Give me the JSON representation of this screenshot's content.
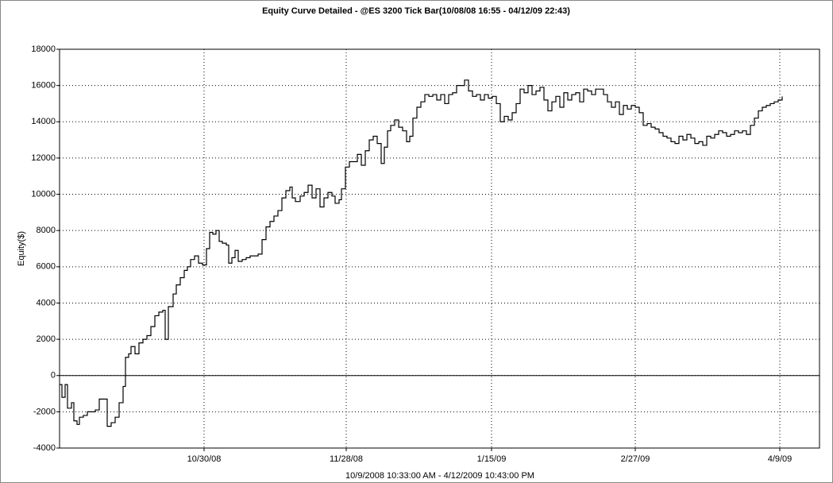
{
  "chart_data": {
    "type": "line",
    "step": true,
    "color": "#000000",
    "title": "Equity Curve Detailed - @ES 3200 Tick Bar(10/08/08 16:55 - 04/12/09 22:43)",
    "y_label": "Equity($)",
    "x_label": "10/9/2008 10:33:00 AM - 4/12/2009 10:43:00 PM",
    "grid": true,
    "zero_line": true,
    "xlim": [
      0,
      957
    ],
    "ylim": [
      -4000,
      18000
    ],
    "xticks": [
      {
        "value": 182,
        "label": "10/30/08"
      },
      {
        "value": 361,
        "label": "11/28/08"
      },
      {
        "value": 544,
        "label": "1/15/09"
      },
      {
        "value": 725,
        "label": "2/27/09"
      },
      {
        "value": 907,
        "label": "4/9/09"
      }
    ],
    "yticks": [
      -4000,
      -2000,
      0,
      2000,
      4000,
      6000,
      8000,
      10000,
      12000,
      14000,
      16000,
      18000
    ],
    "x": [
      0,
      3,
      7,
      10,
      15,
      18,
      22,
      25,
      30,
      35,
      40,
      45,
      50,
      55,
      60,
      65,
      70,
      75,
      80,
      83,
      87,
      90,
      95,
      100,
      105,
      110,
      115,
      120,
      125,
      130,
      133,
      137,
      143,
      147,
      152,
      157,
      161,
      165,
      170,
      175,
      180,
      185,
      189,
      193,
      197,
      201,
      205,
      210,
      213,
      217,
      221,
      225,
      230,
      235,
      240,
      245,
      250,
      255,
      260,
      265,
      270,
      275,
      280,
      285,
      290,
      293,
      297,
      303,
      308,
      313,
      318,
      323,
      328,
      333,
      338,
      343,
      347,
      352,
      355,
      360,
      365,
      370,
      375,
      380,
      385,
      390,
      395,
      400,
      405,
      409,
      413,
      417,
      422,
      427,
      432,
      437,
      441,
      445,
      450,
      455,
      460,
      465,
      470,
      475,
      480,
      485,
      490,
      495,
      500,
      505,
      510,
      515,
      520,
      525,
      530,
      535,
      540,
      545,
      550,
      555,
      560,
      565,
      570,
      575,
      580,
      585,
      590,
      595,
      600,
      605,
      610,
      615,
      620,
      625,
      630,
      635,
      640,
      645,
      650,
      655,
      660,
      665,
      670,
      675,
      680,
      685,
      690,
      695,
      700,
      705,
      710,
      715,
      720,
      725,
      730,
      735,
      740,
      745,
      750,
      755,
      760,
      765,
      770,
      775,
      780,
      785,
      790,
      795,
      800,
      805,
      810,
      815,
      820,
      825,
      830,
      835,
      840,
      845,
      850,
      855,
      860,
      865,
      870,
      875,
      880,
      885,
      890,
      895,
      900,
      905,
      910
    ],
    "values": [
      -500,
      -1200,
      -500,
      -1800,
      -1500,
      -2500,
      -2700,
      -2300,
      -2200,
      -2000,
      -2000,
      -1900,
      -1300,
      -1300,
      -2800,
      -2600,
      -2300,
      -1500,
      -600,
      1000,
      1200,
      1600,
      1200,
      1800,
      2000,
      2200,
      2700,
      3300,
      3500,
      3600,
      2000,
      3800,
      4500,
      5000,
      5400,
      5800,
      6000,
      6400,
      6600,
      6200,
      6100,
      7000,
      7900,
      7800,
      8000,
      7400,
      7300,
      7200,
      6200,
      6500,
      6900,
      6300,
      6400,
      6500,
      6600,
      6600,
      6700,
      7500,
      8200,
      8500,
      8800,
      9100,
      9800,
      10200,
      10400,
      9800,
      9600,
      9900,
      10100,
      10500,
      9800,
      10300,
      9300,
      9800,
      10100,
      9900,
      9500,
      9700,
      10300,
      11500,
      11800,
      11800,
      12200,
      11600,
      12400,
      13000,
      13200,
      12800,
      11700,
      12600,
      13500,
      13800,
      14100,
      13700,
      13500,
      12900,
      13200,
      14200,
      14800,
      15100,
      15500,
      15400,
      15500,
      15200,
      15500,
      15000,
      15500,
      15600,
      16000,
      16000,
      16300,
      15700,
      15400,
      15500,
      15200,
      15500,
      15300,
      15400,
      15000,
      14000,
      14300,
      14100,
      14500,
      15000,
      15800,
      15600,
      16000,
      15500,
      15700,
      15900,
      15200,
      14600,
      15100,
      15400,
      14800,
      15600,
      15200,
      15500,
      15600,
      15100,
      15800,
      15700,
      15500,
      15800,
      15800,
      15500,
      15100,
      14800,
      15100,
      14400,
      14900,
      14700,
      14900,
      14800,
      14500,
      13800,
      13900,
      13700,
      13600,
      13400,
      13200,
      13100,
      12900,
      12800,
      13200,
      13000,
      13300,
      13100,
      12800,
      12900,
      12700,
      13200,
      13100,
      13300,
      13500,
      13400,
      13200,
      13300,
      13500,
      13400,
      13500,
      13300,
      13800,
      14200,
      14600,
      14800,
      14900,
      15000,
      15100,
      15200,
      15400
    ]
  }
}
